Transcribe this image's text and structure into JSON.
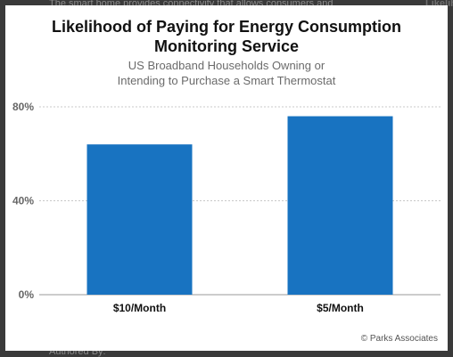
{
  "background": {
    "top_text": "The smart home provides connectivity that allows consumers and",
    "right_text": "Likelihoo",
    "bottom_text": "Authored By:"
  },
  "colors": {
    "bar": "#1873c1",
    "grid": "#c8c8c8",
    "axis_text": "#666666",
    "category_text": "#111111"
  },
  "chart_data": {
    "type": "bar",
    "title_line1": "Likelihood of Paying for Energy Consumption",
    "title_line2": "Monitoring Service",
    "subtitle_line1": "US Broadband Households Owning or",
    "subtitle_line2": "Intending to Purchase a Smart Thermostat",
    "categories": [
      "$10/Month",
      "$5/Month"
    ],
    "values": [
      64,
      76
    ],
    "yticks": [
      "0%",
      "40%",
      "80%"
    ],
    "ylim": [
      0,
      80
    ],
    "grid": true,
    "credit": "© Parks Associates"
  }
}
